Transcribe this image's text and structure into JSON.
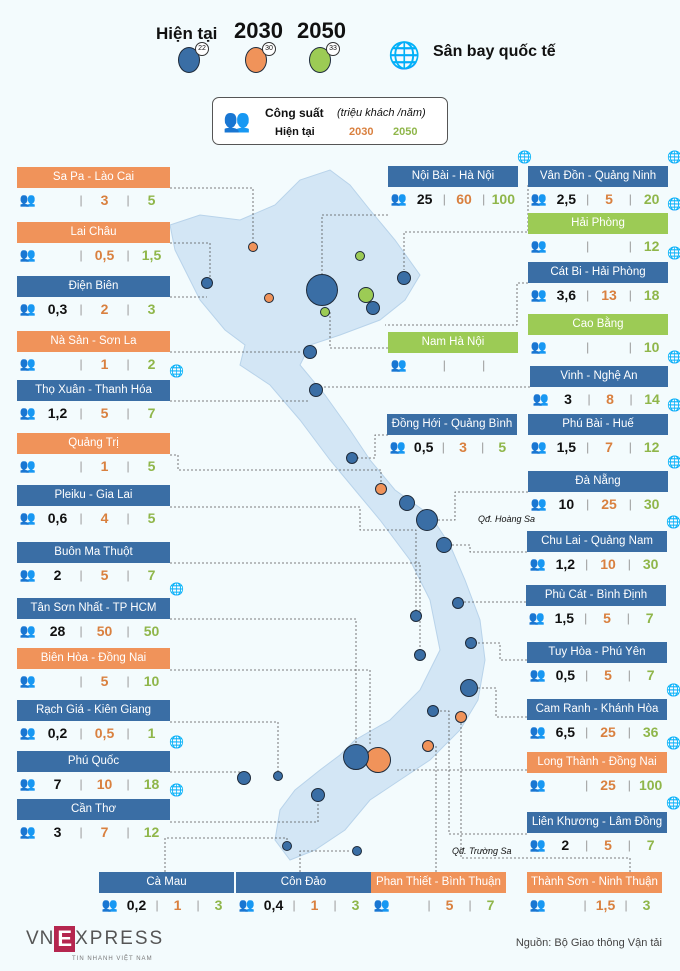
{
  "legend": {
    "current": "Hiện tại",
    "y2030": "2030",
    "y2050": "2050",
    "badge_current": "22",
    "badge_2030": "30",
    "badge_2050": "33",
    "intl": "Sân bay quốc tế"
  },
  "capacity": {
    "title": "Công suất",
    "unit": "(triệu khách /năm)",
    "current": "Hiện tại",
    "y2030": "2030",
    "y2050": "2050"
  },
  "colors": {
    "blue": "#3a6ea5",
    "orange": "#f0935a",
    "green": "#9ccb55"
  },
  "airports": [
    {
      "name": "Sa Pa - Lào Cai",
      "type": "orange",
      "intl": false,
      "now": "",
      "y2030": "3",
      "y2050": "5"
    },
    {
      "name": "Lai Châu",
      "type": "orange",
      "intl": false,
      "now": "",
      "y2030": "0,5",
      "y2050": "1,5"
    },
    {
      "name": "Điện Biên",
      "type": "blue",
      "intl": false,
      "now": "0,3",
      "y2030": "2",
      "y2050": "3"
    },
    {
      "name": "Nà Sản - Sơn La",
      "type": "orange",
      "intl": false,
      "now": "",
      "y2030": "1",
      "y2050": "2"
    },
    {
      "name": "Thọ Xuân - Thanh Hóa",
      "type": "blue",
      "intl": true,
      "now": "1,2",
      "y2030": "5",
      "y2050": "7"
    },
    {
      "name": "Quảng Trị",
      "type": "orange",
      "intl": false,
      "now": "",
      "y2030": "1",
      "y2050": "5"
    },
    {
      "name": "Pleiku - Gia Lai",
      "type": "blue",
      "intl": false,
      "now": "0,6",
      "y2030": "4",
      "y2050": "5"
    },
    {
      "name": "Buôn Ma Thuột",
      "type": "blue",
      "intl": false,
      "now": "2",
      "y2030": "5",
      "y2050": "7"
    },
    {
      "name": "Tân Sơn Nhất - TP HCM",
      "type": "blue",
      "intl": true,
      "now": "28",
      "y2030": "50",
      "y2050": "50"
    },
    {
      "name": "Biên Hòa - Đồng Nai",
      "type": "orange",
      "intl": false,
      "now": "",
      "y2030": "5",
      "y2050": "10"
    },
    {
      "name": "Rạch Giá - Kiên Giang",
      "type": "blue",
      "intl": false,
      "now": "0,2",
      "y2030": "0,5",
      "y2050": "1"
    },
    {
      "name": "Phú Quốc",
      "type": "blue",
      "intl": true,
      "now": "7",
      "y2030": "10",
      "y2050": "18"
    },
    {
      "name": "Cần Thơ",
      "type": "blue",
      "intl": true,
      "now": "3",
      "y2030": "7",
      "y2050": "12"
    },
    {
      "name": "Nội Bài - Hà Nội",
      "type": "blue",
      "intl": true,
      "now": "25",
      "y2030": "60",
      "y2050": "100"
    },
    {
      "name": "Vân Đồn - Quảng Ninh",
      "type": "blue",
      "intl": true,
      "now": "2,5",
      "y2030": "5",
      "y2050": "20"
    },
    {
      "name": "Hải Phòng",
      "type": "green",
      "intl": true,
      "now": "",
      "y2030": "",
      "y2050": "12"
    },
    {
      "name": "Cát Bi - Hải Phòng",
      "type": "blue",
      "intl": true,
      "now": "3,6",
      "y2030": "13",
      "y2050": "18"
    },
    {
      "name": "Cao Bằng",
      "type": "green",
      "intl": false,
      "now": "",
      "y2030": "",
      "y2050": "10"
    },
    {
      "name": "Nam Hà Nội",
      "type": "green",
      "intl": false,
      "now": "",
      "y2030": "",
      "y2050": ""
    },
    {
      "name": "Vinh - Nghệ An",
      "type": "blue",
      "intl": true,
      "now": "3",
      "y2030": "8",
      "y2050": "14"
    },
    {
      "name": "Đồng Hới - Quảng Bình",
      "type": "blue",
      "intl": false,
      "now": "0,5",
      "y2030": "3",
      "y2050": "5"
    },
    {
      "name": "Phú Bài - Huế",
      "type": "blue",
      "intl": true,
      "now": "1,5",
      "y2030": "7",
      "y2050": "12"
    },
    {
      "name": "Đà Nẵng",
      "type": "blue",
      "intl": true,
      "now": "10",
      "y2030": "25",
      "y2050": "30"
    },
    {
      "name": "Chu Lai - Quảng Nam",
      "type": "blue",
      "intl": true,
      "now": "1,2",
      "y2030": "10",
      "y2050": "30"
    },
    {
      "name": "Phù Cát - Bình Định",
      "type": "blue",
      "intl": false,
      "now": "1,5",
      "y2030": "5",
      "y2050": "7"
    },
    {
      "name": "Tuy Hòa - Phú Yên",
      "type": "blue",
      "intl": false,
      "now": "0,5",
      "y2030": "5",
      "y2050": "7"
    },
    {
      "name": "Cam Ranh - Khánh Hòa",
      "type": "blue",
      "intl": true,
      "now": "6,5",
      "y2030": "25",
      "y2050": "36"
    },
    {
      "name": "Long Thành - Đồng Nai",
      "type": "orange",
      "intl": true,
      "now": "",
      "y2030": "25",
      "y2050": "100"
    },
    {
      "name": "Liên Khương - Lâm Đồng",
      "type": "blue",
      "intl": true,
      "now": "2",
      "y2030": "5",
      "y2050": "7"
    },
    {
      "name": "Cà Mau",
      "type": "blue",
      "intl": false,
      "now": "0,2",
      "y2030": "1",
      "y2050": "3"
    },
    {
      "name": "Côn Đảo",
      "type": "blue",
      "intl": false,
      "now": "0,4",
      "y2030": "1",
      "y2050": "3"
    },
    {
      "name": "Phan Thiết - Bình Thuận",
      "type": "orange",
      "intl": false,
      "now": "",
      "y2030": "5",
      "y2050": "7"
    },
    {
      "name": "Thành Sơn - Ninh Thuận",
      "type": "orange",
      "intl": false,
      "now": "",
      "y2030": "1,5",
      "y2050": "3"
    }
  ],
  "map_labels": {
    "hoang_sa": "Qđ. Hoàng Sa",
    "truong_sa": "Qđ. Trường Sa"
  },
  "footer": {
    "logo": "VNEXPRESS",
    "logo_sub": "TIN NHANH VIỆT NAM",
    "source": "Nguồn: Bộ Giao thông Vận tải"
  }
}
